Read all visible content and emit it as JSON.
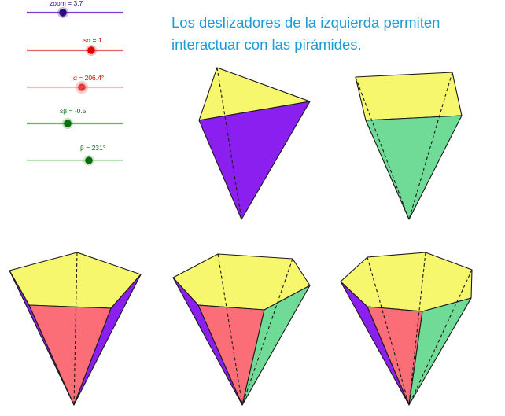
{
  "description": {
    "line1": "Los deslizadores de la izquierda permiten",
    "line2": "interactuar con las pirámides."
  },
  "sliders": [
    {
      "label": "zoom = 3.7",
      "value": 3.7,
      "position": 0.28,
      "color": "#7d3ccf",
      "knob_color": "#2a0d77",
      "track_opacity": 1.0
    },
    {
      "label": "sα = 1",
      "value": 1,
      "position": 0.67,
      "color": "#e03c3c",
      "knob_color": "#e00000",
      "track_opacity": 0.9
    },
    {
      "label": "α = 206.4°",
      "value": 206.4,
      "position": 0.57,
      "color": "#f08a8a",
      "knob_color": "#e53a3a",
      "track_opacity": 0.5
    },
    {
      "label": "sβ = -0.5",
      "value": -0.5,
      "position": 0.25,
      "color": "#3faf3f",
      "knob_color": "#0b6d0b",
      "track_opacity": 0.9
    },
    {
      "label": "β = 231°",
      "value": 231,
      "position": 0.64,
      "color": "#7cc97c",
      "knob_color": "#0b6d0b",
      "track_opacity": 0.45
    }
  ],
  "colors": {
    "top_face": "#f7f76e",
    "purple_face": "#8b1fef",
    "green_face": "#6fdb97",
    "red_face": "#fb6e78",
    "edge": "#1a1a1a"
  },
  "pyramids": [
    {
      "name": "pyramid-triangular",
      "sides": 3
    },
    {
      "name": "pyramid-square",
      "sides": 4
    },
    {
      "name": "pyramid-pentagonal",
      "sides": 5
    },
    {
      "name": "pyramid-hexagonal",
      "sides": 6
    },
    {
      "name": "pyramid-heptagonal",
      "sides": 7
    }
  ]
}
